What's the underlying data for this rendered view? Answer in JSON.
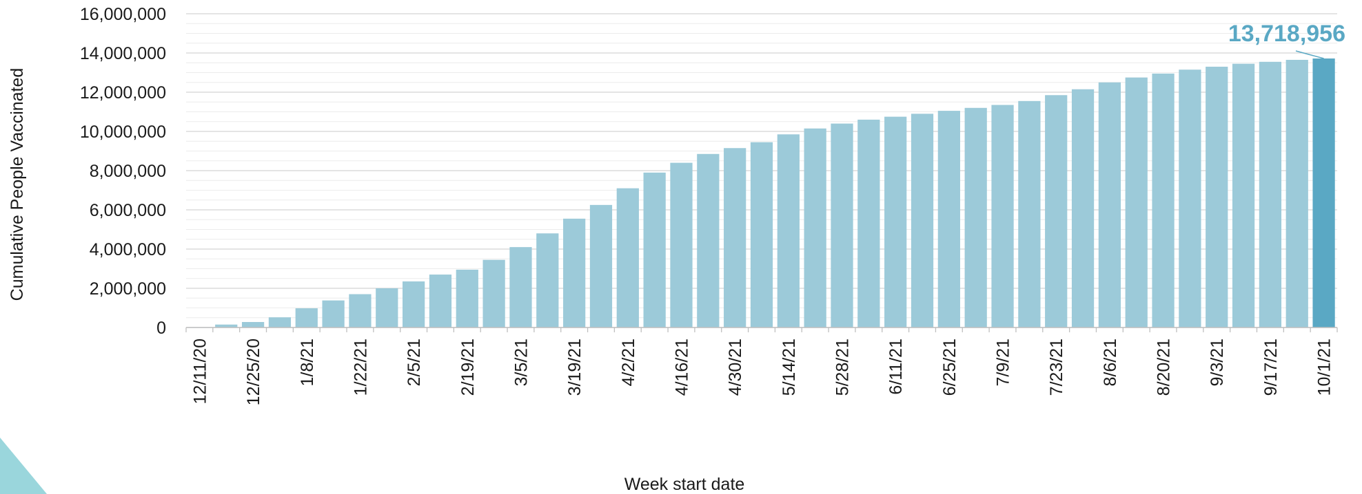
{
  "chart_data": {
    "type": "bar",
    "xlabel": "Week start date",
    "ylabel": "Cumulative People Vaccinated",
    "ylim": [
      0,
      16000000
    ],
    "y_ticks": [
      0,
      2000000,
      4000000,
      6000000,
      8000000,
      10000000,
      12000000,
      14000000,
      16000000
    ],
    "y_tick_labels": [
      "0",
      "2,000,000",
      "4,000,000",
      "6,000,000",
      "8,000,000",
      "10,000,000",
      "12,000,000",
      "14,000,000",
      "16,000,000"
    ],
    "grid": true,
    "categories": [
      "12/11/20",
      "12/18/20",
      "12/25/20",
      "1/1/21",
      "1/8/21",
      "1/15/21",
      "1/22/21",
      "1/29/21",
      "2/5/21",
      "2/12/21",
      "2/19/21",
      "2/26/21",
      "3/5/21",
      "3/12/21",
      "3/19/21",
      "3/26/21",
      "4/2/21",
      "4/9/21",
      "4/16/21",
      "4/23/21",
      "4/30/21",
      "5/7/21",
      "5/14/21",
      "5/21/21",
      "5/28/21",
      "6/4/21",
      "6/11/21",
      "6/18/21",
      "6/25/21",
      "7/2/21",
      "7/9/21",
      "7/16/21",
      "7/23/21",
      "7/30/21",
      "8/6/21",
      "8/13/21",
      "8/20/21",
      "8/27/21",
      "9/3/21",
      "9/10/21",
      "9/17/21",
      "9/24/21",
      "10/1/21"
    ],
    "tick_labels_shown": [
      "12/11/20",
      "12/25/20",
      "1/8/21",
      "1/22/21",
      "2/5/21",
      "2/19/21",
      "3/5/21",
      "3/19/21",
      "4/2/21",
      "4/16/21",
      "4/30/21",
      "5/14/21",
      "5/28/21",
      "6/11/21",
      "6/25/21",
      "7/9/21",
      "7/23/21",
      "8/6/21",
      "8/20/21",
      "9/3/21",
      "9/17/21",
      "10/1/21"
    ],
    "values": [
      20000,
      150000,
      280000,
      520000,
      980000,
      1380000,
      1700000,
      2000000,
      2350000,
      2700000,
      2950000,
      3450000,
      4100000,
      4800000,
      5550000,
      6250000,
      7100000,
      7900000,
      8400000,
      8850000,
      9150000,
      9450000,
      9850000,
      10150000,
      10400000,
      10600000,
      10750000,
      10900000,
      11050000,
      11200000,
      11350000,
      11550000,
      11850000,
      12150000,
      12500000,
      12750000,
      12950000,
      13150000,
      13300000,
      13450000,
      13550000,
      13650000,
      13718956
    ],
    "bar_color": "#9ccad9",
    "highlight_color": "#5aa8c4",
    "highlight_index": 42,
    "annotation": {
      "text": "13,718,956",
      "color": "#5aa8c4"
    }
  },
  "decoration": {
    "corner_triangle_color": "#9ad6dc"
  }
}
